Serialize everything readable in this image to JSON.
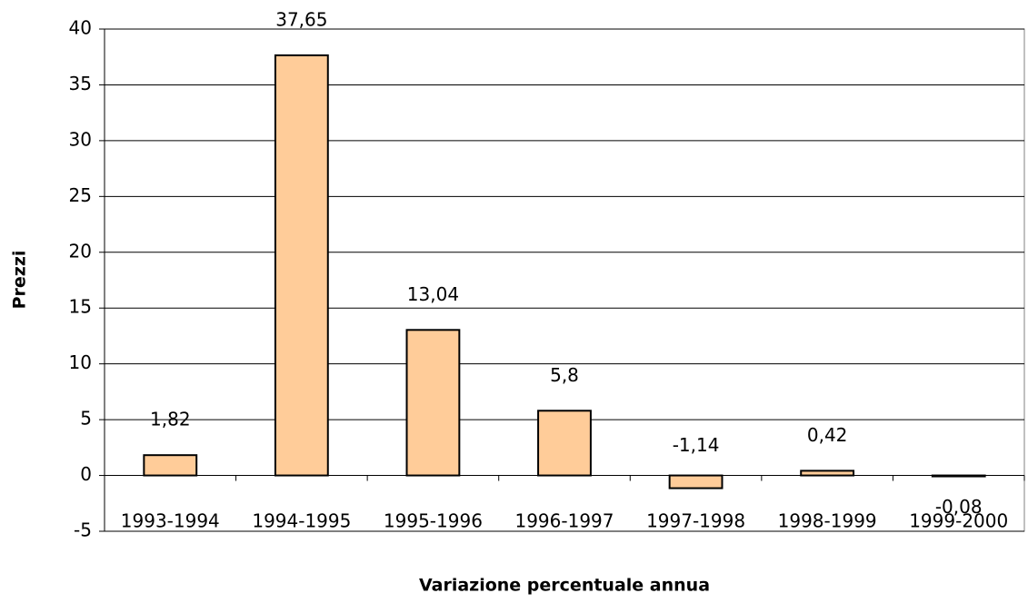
{
  "chart_data": {
    "type": "bar",
    "x_label": "Variazione percentuale annua",
    "y_label": "Prezzi",
    "categories": [
      "1993-1994",
      "1994-1995",
      "1995-1996",
      "1996-1997",
      "1997-1998",
      "1998-1999",
      "1999-2000"
    ],
    "values": [
      1.82,
      37.65,
      13.04,
      5.8,
      -1.14,
      0.42,
      -0.08
    ],
    "value_labels": [
      "1,82",
      "37,65",
      "13,04",
      "5,8",
      "-1,14",
      "0,42",
      "-0,08"
    ],
    "color": "#ffcc99",
    "ylim": [
      -5,
      40
    ],
    "yticks": [
      -5,
      0,
      5,
      10,
      15,
      20,
      25,
      30,
      35,
      40
    ],
    "grid": true
  }
}
